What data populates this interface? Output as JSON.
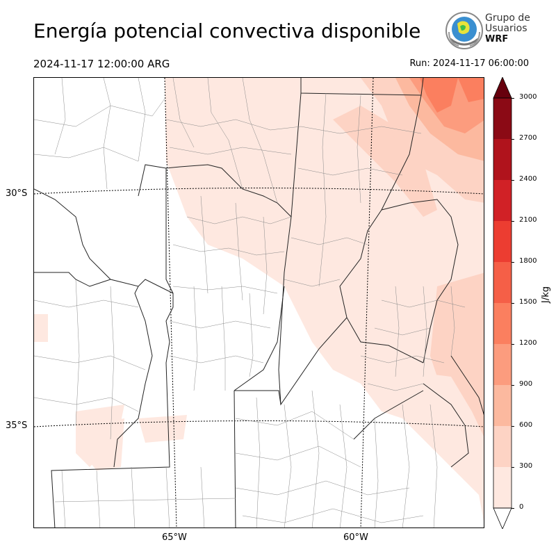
{
  "header": {
    "title": "Energía potencial convectiva disponible",
    "valid_time": "2024-11-17 12:00:00 ARG",
    "run_time": "Run: 2024-11-17 06:00:00"
  },
  "logo": {
    "line1": "Grupo de",
    "line2": "Usuarios",
    "line3": "WRF"
  },
  "map": {
    "lat_labels": [
      "30°S",
      "35°S"
    ],
    "lon_labels": [
      "65°W",
      "60°W"
    ]
  },
  "colorbar": {
    "unit": "J/kg",
    "ticks": [
      "0",
      "300",
      "600",
      "900",
      "1200",
      "1500",
      "1800",
      "2100",
      "2400",
      "2700",
      "3000"
    ],
    "colors": [
      "#fee8e0",
      "#fdd3c4",
      "#fcb99f",
      "#fc9c7e",
      "#fb7f5f",
      "#f55f47",
      "#ec3d31",
      "#d12126",
      "#b0131c",
      "#8b0a15"
    ],
    "over_color": "#67000d",
    "under_color": "#ffffff"
  }
}
